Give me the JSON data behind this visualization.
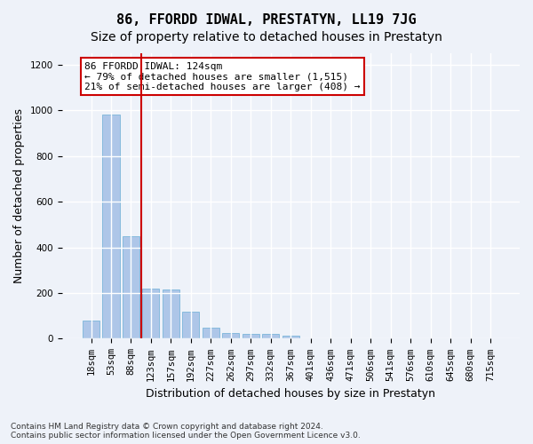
{
  "title": "86, FFORDD IDWAL, PRESTATYN, LL19 7JG",
  "subtitle": "Size of property relative to detached houses in Prestatyn",
  "xlabel": "Distribution of detached houses by size in Prestatyn",
  "ylabel": "Number of detached properties",
  "footnote": "Contains HM Land Registry data © Crown copyright and database right 2024.\nContains public sector information licensed under the Open Government Licence v3.0.",
  "bar_labels": [
    "18sqm",
    "53sqm",
    "88sqm",
    "123sqm",
    "157sqm",
    "192sqm",
    "227sqm",
    "262sqm",
    "297sqm",
    "332sqm",
    "367sqm",
    "401sqm",
    "436sqm",
    "471sqm",
    "506sqm",
    "541sqm",
    "576sqm",
    "610sqm",
    "645sqm",
    "680sqm",
    "715sqm"
  ],
  "bar_values": [
    80,
    980,
    450,
    220,
    215,
    120,
    50,
    25,
    22,
    20,
    12,
    0,
    0,
    0,
    0,
    0,
    0,
    0,
    0,
    0,
    0
  ],
  "bar_color": "#aec6e8",
  "bar_edgecolor": "#6baed6",
  "vline_x": 3,
  "vline_color": "#cc0000",
  "annotation_text": "86 FFORDD IDWAL: 124sqm\n← 79% of detached houses are smaller (1,515)\n21% of semi-detached houses are larger (408) →",
  "annotation_box_color": "#ffffff",
  "annotation_box_edgecolor": "#cc0000",
  "ylim": [
    0,
    1250
  ],
  "yticks": [
    0,
    200,
    400,
    600,
    800,
    1000,
    1200
  ],
  "bg_color": "#eef2f9",
  "plot_bg_color": "#eef2f9",
  "grid_color": "#ffffff",
  "title_fontsize": 11,
  "subtitle_fontsize": 10,
  "axis_label_fontsize": 9,
  "tick_fontsize": 7.5,
  "annotation_fontsize": 8
}
